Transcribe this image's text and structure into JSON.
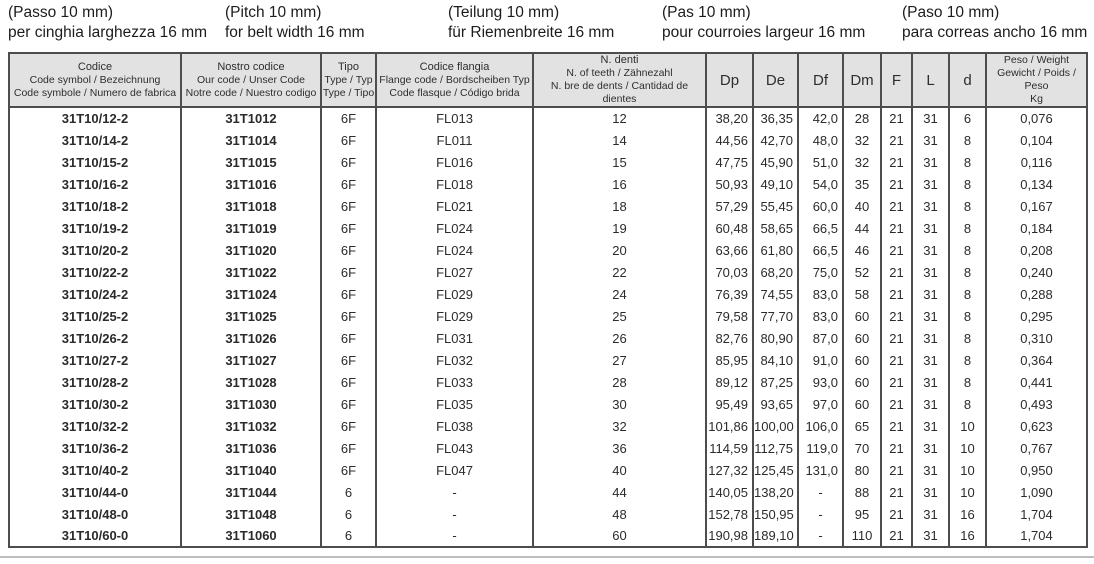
{
  "page_header": {
    "blocks": [
      {
        "lang": "italian",
        "line1": "(Passo 10 mm)",
        "line2": "per cinghia larghezza 16 mm"
      },
      {
        "lang": "english",
        "line1": "(Pitch 10 mm)",
        "line2": "for belt width 16 mm"
      },
      {
        "lang": "german",
        "line1": "(Teilung 10 mm)",
        "line2": "für Riemenbreite 16 mm"
      },
      {
        "lang": "french",
        "line1": "(Pas 10 mm)",
        "line2": "pour courroies largeur 16 mm"
      },
      {
        "lang": "spanish",
        "line1": "(Paso 10 mm)",
        "line2": "para correas ancho 16 mm"
      }
    ]
  },
  "colors": {
    "header-bg": "#e2e2e2",
    "border-color": "#4d4d4d",
    "text-color": "#2c2c2c",
    "rule-color": "#bdbdbd"
  },
  "table": {
    "columns": [
      {
        "key": "code_symbol",
        "lines": [
          "Codice",
          "Code symbol / Bezeichnung",
          "Code symbole / Numero de fabrica"
        ]
      },
      {
        "key": "our_code",
        "lines": [
          "Nostro codice",
          "Our code / Unser Code",
          "Notre code / Nuestro codigo"
        ]
      },
      {
        "key": "type",
        "lines": [
          "Tipo",
          "Type / Typ",
          "Type / Tipo"
        ]
      },
      {
        "key": "flange_code",
        "lines": [
          "Codice flangia",
          "Flange code / Bordscheiben Typ",
          "Code flasque / Código brida"
        ]
      },
      {
        "key": "teeth",
        "lines": [
          "N. denti",
          "N. of teeth / Zähnezahl",
          "N. bre de dents / Cantidad de dientes"
        ]
      },
      {
        "key": "Dp",
        "lines": [
          "Dp"
        ]
      },
      {
        "key": "De",
        "lines": [
          "De"
        ]
      },
      {
        "key": "Df",
        "lines": [
          "Df"
        ]
      },
      {
        "key": "Dm",
        "lines": [
          "Dm"
        ]
      },
      {
        "key": "F",
        "lines": [
          "F"
        ]
      },
      {
        "key": "L",
        "lines": [
          "L"
        ]
      },
      {
        "key": "d",
        "lines": [
          "d"
        ]
      },
      {
        "key": "weight",
        "lines": [
          "Peso / Weight",
          "Gewicht / Poids / Peso",
          "Kg"
        ]
      }
    ],
    "rows": [
      [
        "31T10/12-2",
        "31T1012",
        "6F",
        "FL013",
        "12",
        "38,20",
        "36,35",
        "42,0",
        "28",
        "21",
        "31",
        "6",
        "0,076"
      ],
      [
        "31T10/14-2",
        "31T1014",
        "6F",
        "FL011",
        "14",
        "44,56",
        "42,70",
        "48,0",
        "32",
        "21",
        "31",
        "8",
        "0,104"
      ],
      [
        "31T10/15-2",
        "31T1015",
        "6F",
        "FL016",
        "15",
        "47,75",
        "45,90",
        "51,0",
        "32",
        "21",
        "31",
        "8",
        "0,116"
      ],
      [
        "31T10/16-2",
        "31T1016",
        "6F",
        "FL018",
        "16",
        "50,93",
        "49,10",
        "54,0",
        "35",
        "21",
        "31",
        "8",
        "0,134"
      ],
      [
        "31T10/18-2",
        "31T1018",
        "6F",
        "FL021",
        "18",
        "57,29",
        "55,45",
        "60,0",
        "40",
        "21",
        "31",
        "8",
        "0,167"
      ],
      [
        "31T10/19-2",
        "31T1019",
        "6F",
        "FL024",
        "19",
        "60,48",
        "58,65",
        "66,5",
        "44",
        "21",
        "31",
        "8",
        "0,184"
      ],
      [
        "31T10/20-2",
        "31T1020",
        "6F",
        "FL024",
        "20",
        "63,66",
        "61,80",
        "66,5",
        "46",
        "21",
        "31",
        "8",
        "0,208"
      ],
      [
        "31T10/22-2",
        "31T1022",
        "6F",
        "FL027",
        "22",
        "70,03",
        "68,20",
        "75,0",
        "52",
        "21",
        "31",
        "8",
        "0,240"
      ],
      [
        "31T10/24-2",
        "31T1024",
        "6F",
        "FL029",
        "24",
        "76,39",
        "74,55",
        "83,0",
        "58",
        "21",
        "31",
        "8",
        "0,288"
      ],
      [
        "31T10/25-2",
        "31T1025",
        "6F",
        "FL029",
        "25",
        "79,58",
        "77,70",
        "83,0",
        "60",
        "21",
        "31",
        "8",
        "0,295"
      ],
      [
        "31T10/26-2",
        "31T1026",
        "6F",
        "FL031",
        "26",
        "82,76",
        "80,90",
        "87,0",
        "60",
        "21",
        "31",
        "8",
        "0,310"
      ],
      [
        "31T10/27-2",
        "31T1027",
        "6F",
        "FL032",
        "27",
        "85,95",
        "84,10",
        "91,0",
        "60",
        "21",
        "31",
        "8",
        "0,364"
      ],
      [
        "31T10/28-2",
        "31T1028",
        "6F",
        "FL033",
        "28",
        "89,12",
        "87,25",
        "93,0",
        "60",
        "21",
        "31",
        "8",
        "0,441"
      ],
      [
        "31T10/30-2",
        "31T1030",
        "6F",
        "FL035",
        "30",
        "95,49",
        "93,65",
        "97,0",
        "60",
        "21",
        "31",
        "8",
        "0,493"
      ],
      [
        "31T10/32-2",
        "31T1032",
        "6F",
        "FL038",
        "32",
        "101,86",
        "100,00",
        "106,0",
        "65",
        "21",
        "31",
        "10",
        "0,623"
      ],
      [
        "31T10/36-2",
        "31T1036",
        "6F",
        "FL043",
        "36",
        "114,59",
        "112,75",
        "119,0",
        "70",
        "21",
        "31",
        "10",
        "0,767"
      ],
      [
        "31T10/40-2",
        "31T1040",
        "6F",
        "FL047",
        "40",
        "127,32",
        "125,45",
        "131,0",
        "80",
        "21",
        "31",
        "10",
        "0,950"
      ],
      [
        "31T10/44-0",
        "31T1044",
        "6",
        "-",
        "44",
        "140,05",
        "138,20",
        "-",
        "88",
        "21",
        "31",
        "10",
        "1,090"
      ],
      [
        "31T10/48-0",
        "31T1048",
        "6",
        "-",
        "48",
        "152,78",
        "150,95",
        "-",
        "95",
        "21",
        "31",
        "16",
        "1,704"
      ],
      [
        "31T10/60-0",
        "31T1060",
        "6",
        "-",
        "60",
        "190,98",
        "189,10",
        "-",
        "110",
        "21",
        "31",
        "16",
        "1,704"
      ]
    ]
  }
}
